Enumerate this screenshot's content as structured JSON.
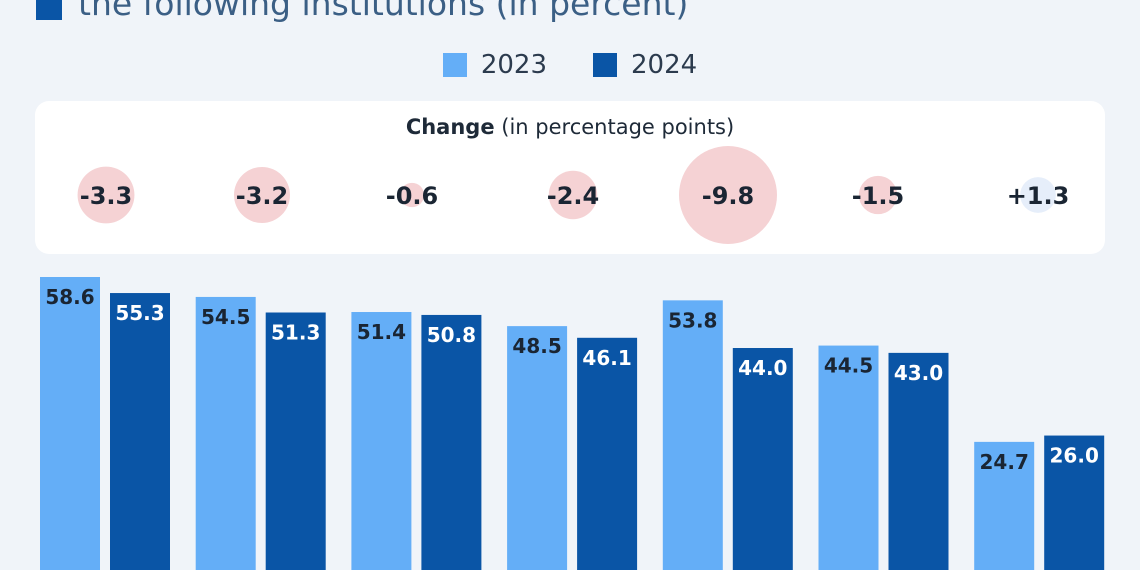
{
  "title": "the following institutions (in percent)",
  "colors": {
    "series_2023": "#64aef7",
    "series_2024": "#0a55a6",
    "bubble_negative": "#f5d2d4",
    "bubble_positive": "#e6eefa",
    "panel": "#ffffff",
    "background": "#f0f4f9"
  },
  "change_panel": {
    "title_bold": "Change",
    "title_rest": " (in percentage points)",
    "labels": [
      "-3.3",
      "-3.2",
      "-0.6",
      "-2.4",
      "-9.8",
      "-1.5",
      "+1.3"
    ]
  },
  "chart_data": {
    "type": "bar",
    "title": "",
    "xlabel": "",
    "ylabel": "",
    "ylim": [
      0,
      60
    ],
    "legend_position": "top-center",
    "grid": false,
    "categories": [
      "",
      "",
      "",
      "",
      "",
      "",
      ""
    ],
    "series": [
      {
        "name": "2023",
        "values": [
          58.6,
          54.5,
          51.4,
          48.5,
          53.8,
          44.5,
          24.7
        ],
        "labels": [
          "58.6",
          "54.5",
          "51.4",
          "48.5",
          "53.8",
          "44.5",
          "24.7"
        ]
      },
      {
        "name": "2024",
        "values": [
          55.3,
          51.3,
          50.8,
          46.1,
          44.0,
          43.0,
          26.0
        ],
        "labels": [
          "55.3",
          "51.3",
          "50.8",
          "46.1",
          "44.0",
          "43.0",
          "26.0"
        ]
      }
    ],
    "change": [
      -3.3,
      -3.2,
      -0.6,
      -2.4,
      -9.8,
      -1.5,
      1.3
    ]
  }
}
